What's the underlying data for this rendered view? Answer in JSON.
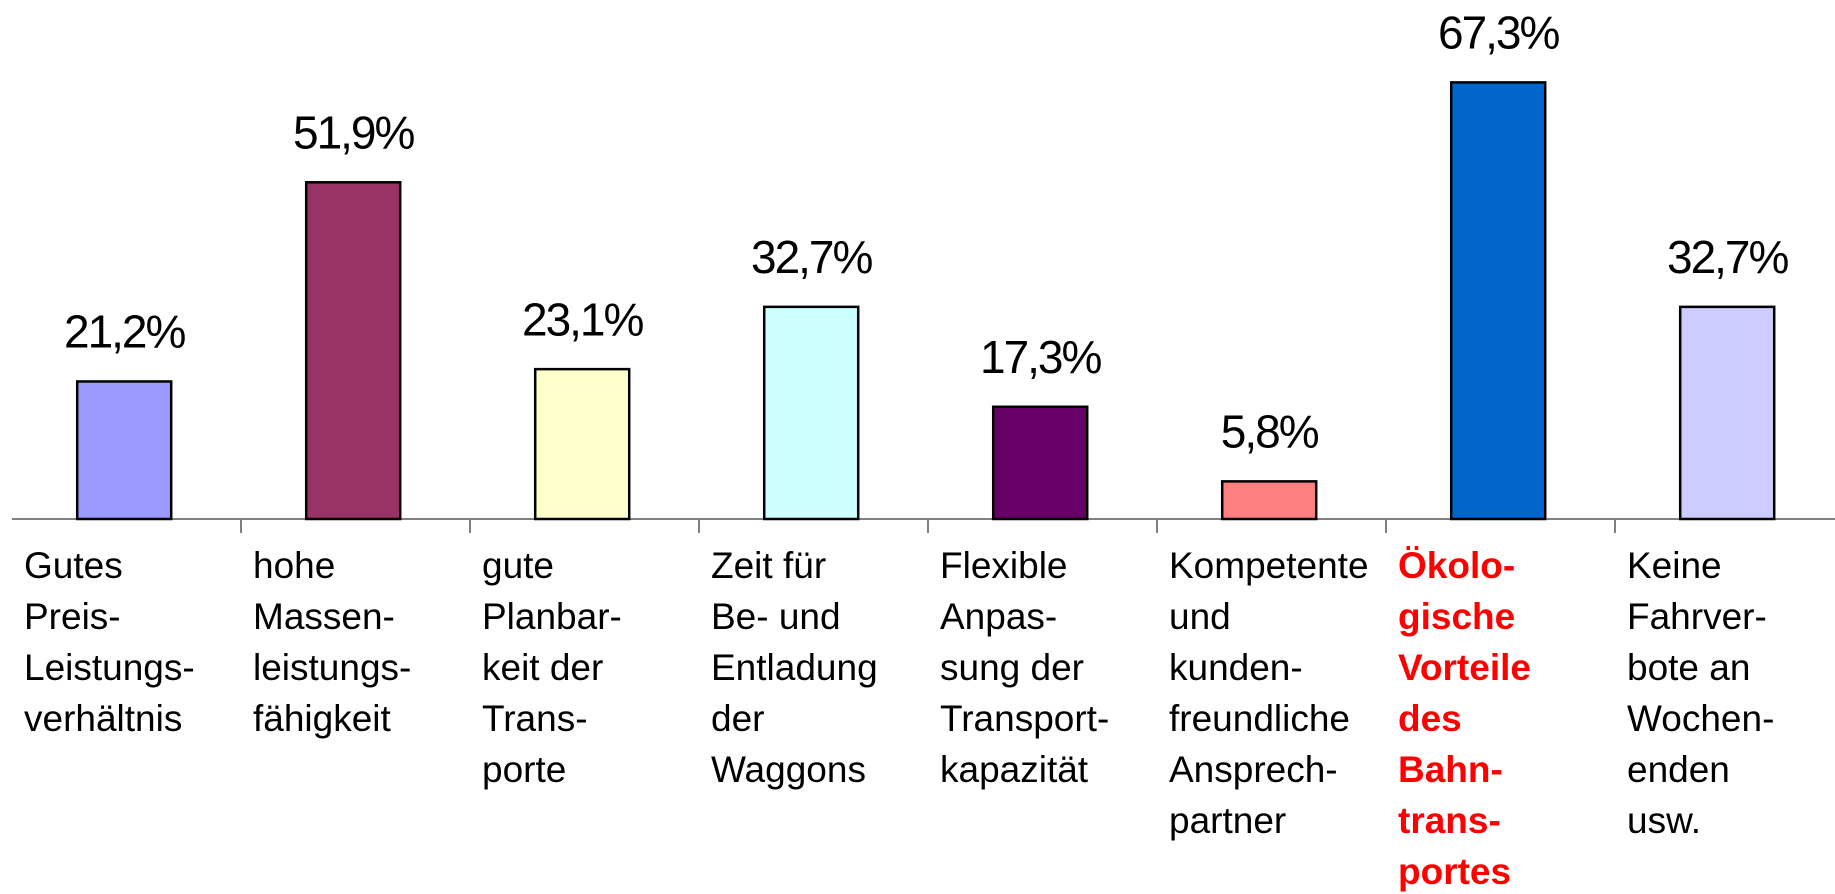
{
  "chart_data": {
    "type": "bar",
    "categories": [
      "Gutes\nPreis-\nLeistungs-\nverhältnis",
      "hohe\nMassen-\nleistungs-\nfähigkeit",
      "gute\nPlanbar-\nkeit der\nTrans-\nporte",
      "Zeit für\nBe- und\nEntladung\nder\nWaggons",
      "Flexible\nAnpas-\nsung der\nTransport-\nkapazität",
      "Kompetente\nund\nkunden-\nfreundliche\nAnsprech-\npartner",
      "Ökolo-\ngische\nVorteile\ndes\nBahn-\ntrans-\nportes",
      "Keine\nFahrver-\nbote an\nWochen-\nenden\nusw."
    ],
    "values": [
      21.2,
      51.9,
      23.1,
      32.7,
      17.3,
      5.8,
      67.3,
      32.7
    ],
    "value_labels": [
      "21,2%",
      "51,9%",
      "23,1%",
      "32,7%",
      "17,3%",
      "5,8%",
      "67,3%",
      "32,7%"
    ],
    "colors": [
      "#9999ff",
      "#993366",
      "#ffffcc",
      "#ccffff",
      "#660066",
      "#ff8080",
      "#0066cc",
      "#ccccff"
    ],
    "label_colors": [
      "#000000",
      "#000000",
      "#000000",
      "#000000",
      "#000000",
      "#000000",
      "#ff0000",
      "#000000"
    ],
    "ylim": [
      0,
      80
    ]
  }
}
